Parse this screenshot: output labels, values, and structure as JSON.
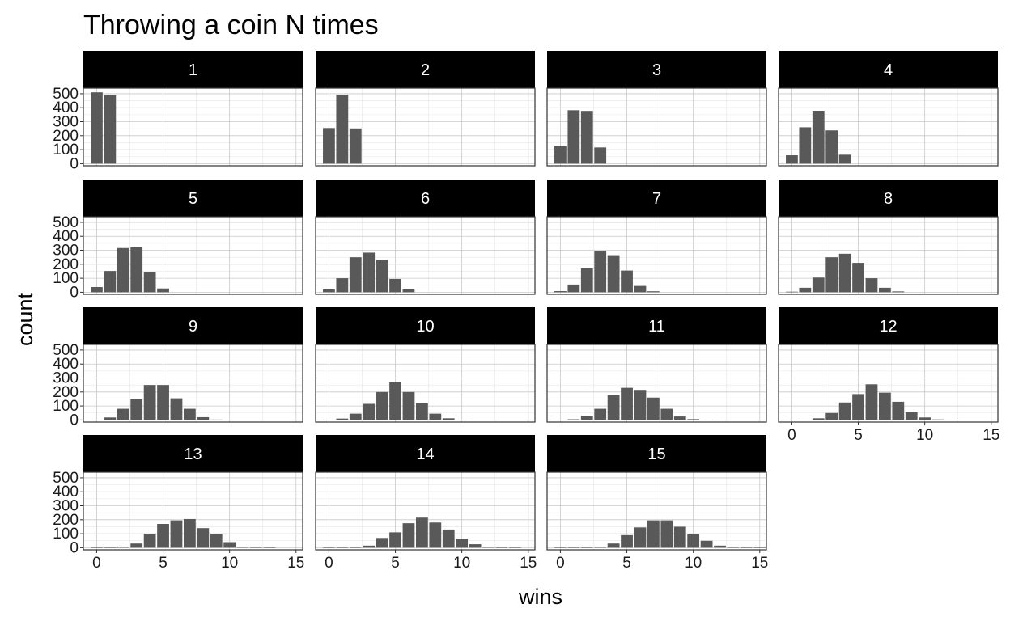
{
  "chart_data": {
    "type": "bar",
    "title": "Throwing a coin N times",
    "xlabel": "wins",
    "ylabel": "count",
    "xlim": [
      -1,
      15.5
    ],
    "ylim": [
      -15,
      540
    ],
    "xticks": [
      0,
      5,
      10,
      15
    ],
    "yticks": [
      0,
      100,
      200,
      300,
      400,
      500
    ],
    "grid": true,
    "bar_color": "#595959",
    "strip_color": "#000000",
    "strip_text_color": "#ffffff",
    "facets": [
      {
        "label": "1",
        "x": [
          0,
          1
        ],
        "values": [
          510,
          490
        ]
      },
      {
        "label": "2",
        "x": [
          0,
          1,
          2
        ],
        "values": [
          255,
          493,
          252
        ]
      },
      {
        "label": "3",
        "x": [
          0,
          1,
          2,
          3
        ],
        "values": [
          125,
          382,
          377,
          116
        ]
      },
      {
        "label": "4",
        "x": [
          0,
          1,
          2,
          3,
          4
        ],
        "values": [
          60,
          260,
          378,
          238,
          64
        ]
      },
      {
        "label": "5",
        "x": [
          0,
          1,
          2,
          3,
          4,
          5
        ],
        "values": [
          37,
          152,
          316,
          322,
          146,
          27
        ]
      },
      {
        "label": "6",
        "x": [
          0,
          1,
          2,
          3,
          4,
          5,
          6
        ],
        "values": [
          20,
          100,
          250,
          283,
          232,
          95,
          20
        ]
      },
      {
        "label": "7",
        "x": [
          0,
          1,
          2,
          3,
          4,
          5,
          6,
          7
        ],
        "values": [
          8,
          55,
          170,
          295,
          265,
          155,
          45,
          7
        ]
      },
      {
        "label": "8",
        "x": [
          0,
          1,
          2,
          3,
          4,
          5,
          6,
          7,
          8
        ],
        "values": [
          4,
          32,
          105,
          250,
          275,
          210,
          100,
          32,
          6
        ]
      },
      {
        "label": "9",
        "x": [
          0,
          1,
          2,
          3,
          4,
          5,
          6,
          7,
          8,
          9
        ],
        "values": [
          2,
          18,
          80,
          150,
          250,
          250,
          155,
          80,
          20,
          3
        ]
      },
      {
        "label": "10",
        "x": [
          0,
          1,
          2,
          3,
          4,
          5,
          6,
          7,
          8,
          9,
          10
        ],
        "values": [
          1,
          10,
          45,
          115,
          200,
          270,
          200,
          120,
          45,
          12,
          1
        ]
      },
      {
        "label": "11",
        "x": [
          0,
          1,
          2,
          3,
          4,
          5,
          6,
          7,
          8,
          9,
          10,
          11
        ],
        "values": [
          0,
          5,
          30,
          80,
          180,
          230,
          215,
          160,
          80,
          25,
          6,
          0
        ]
      },
      {
        "label": "12",
        "x": [
          0,
          1,
          2,
          3,
          4,
          5,
          6,
          7,
          8,
          9,
          10,
          11,
          12
        ],
        "values": [
          0,
          2,
          12,
          50,
          125,
          185,
          255,
          195,
          130,
          55,
          18,
          4,
          0
        ]
      },
      {
        "label": "13",
        "x": [
          0,
          1,
          2,
          3,
          4,
          5,
          6,
          7,
          8,
          9,
          10,
          11,
          12,
          13
        ],
        "values": [
          0,
          0,
          8,
          30,
          100,
          170,
          195,
          205,
          140,
          100,
          40,
          8,
          2,
          0
        ]
      },
      {
        "label": "14",
        "x": [
          0,
          1,
          2,
          3,
          4,
          5,
          6,
          7,
          8,
          9,
          10,
          11,
          12,
          13,
          14
        ],
        "values": [
          0,
          0,
          0,
          15,
          70,
          110,
          175,
          215,
          180,
          130,
          65,
          25,
          3,
          0,
          0
        ]
      },
      {
        "label": "15",
        "x": [
          0,
          1,
          2,
          3,
          4,
          5,
          6,
          7,
          8,
          9,
          10,
          11,
          12,
          13,
          14,
          15
        ],
        "values": [
          0,
          0,
          0,
          8,
          30,
          90,
          145,
          195,
          195,
          150,
          95,
          50,
          15,
          2,
          0,
          0
        ]
      }
    ]
  }
}
